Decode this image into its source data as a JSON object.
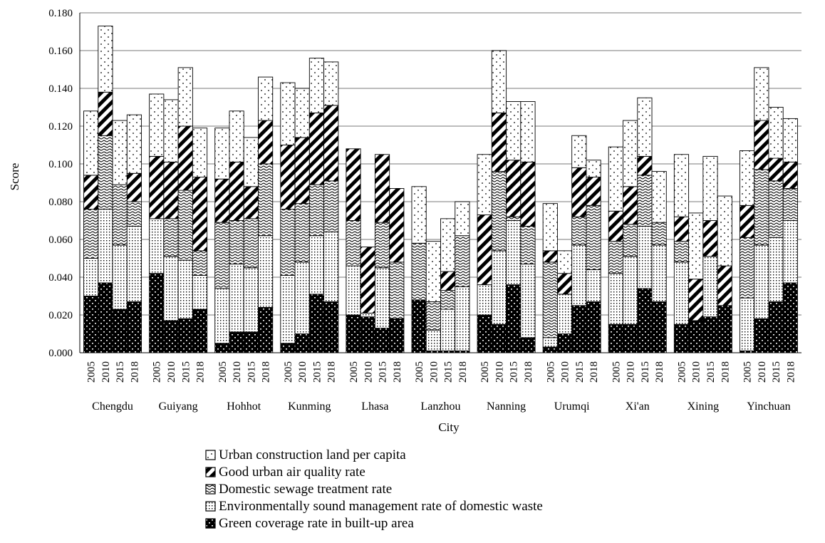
{
  "chart_data": {
    "type": "bar",
    "stacked": true,
    "xlabel": "City",
    "ylabel": "Score",
    "ylim": [
      0,
      0.18
    ],
    "yticks": [
      "0.000",
      "0.020",
      "0.040",
      "0.060",
      "0.080",
      "0.100",
      "0.120",
      "0.140",
      "0.160",
      "0.180"
    ],
    "grid": "horizontal",
    "legend_position": "bottom",
    "years": [
      "2005",
      "2010",
      "2015",
      "2018"
    ],
    "cities": [
      "Chengdu",
      "Guiyang",
      "Hohhot",
      "Kunming",
      "Lhasa",
      "Lanzhou",
      "Nanning",
      "Urumqi",
      "Xi'an",
      "Xining",
      "Yinchuan"
    ],
    "series": [
      {
        "name": "Green coverage rate in built-up area",
        "pattern": "green",
        "values": [
          [
            0.03,
            0.037,
            0.023,
            0.027
          ],
          [
            0.042,
            0.017,
            0.018,
            0.023
          ],
          [
            0.005,
            0.011,
            0.011,
            0.024
          ],
          [
            0.005,
            0.01,
            0.031,
            0.027
          ],
          [
            0.02,
            0.019,
            0.013,
            0.018
          ],
          [
            0.028,
            0.001,
            0.001,
            0.001
          ],
          [
            0.02,
            0.015,
            0.036,
            0.008
          ],
          [
            0.003,
            0.01,
            0.025,
            0.027
          ],
          [
            0.015,
            0.015,
            0.034,
            0.027
          ],
          [
            0.015,
            0.017,
            0.019,
            0.025
          ],
          [
            0.001,
            0.018,
            0.027,
            0.037
          ]
        ]
      },
      {
        "name": "Environmentally sound management rate of domestic waste",
        "pattern": "waste",
        "values": [
          [
            0.02,
            0.039,
            0.034,
            0.04
          ],
          [
            0.029,
            0.034,
            0.031,
            0.018
          ],
          [
            0.029,
            0.036,
            0.034,
            0.038
          ],
          [
            0.036,
            0.038,
            0.031,
            0.037
          ],
          [
            0.026,
            0.002,
            0.032,
            0.0
          ],
          [
            0.0,
            0.011,
            0.022,
            0.034
          ],
          [
            0.016,
            0.039,
            0.034,
            0.039
          ],
          [
            0.005,
            0.021,
            0.032,
            0.017
          ],
          [
            0.027,
            0.036,
            0.033,
            0.03
          ],
          [
            0.033,
            0.0,
            0.032,
            0.0
          ],
          [
            0.028,
            0.039,
            0.034,
            0.033
          ]
        ]
      },
      {
        "name": "Domestic sewage treatment rate",
        "pattern": "sewage",
        "values": [
          [
            0.026,
            0.039,
            0.032,
            0.013
          ],
          [
            0.0,
            0.02,
            0.037,
            0.013
          ],
          [
            0.035,
            0.023,
            0.026,
            0.038
          ],
          [
            0.035,
            0.031,
            0.027,
            0.027
          ],
          [
            0.024,
            0.0,
            0.024,
            0.03
          ],
          [
            0.03,
            0.015,
            0.01,
            0.027
          ],
          [
            0.0,
            0.042,
            0.002,
            0.02
          ],
          [
            0.04,
            0.0,
            0.015,
            0.034
          ],
          [
            0.017,
            0.017,
            0.027,
            0.012
          ],
          [
            0.011,
            0.0,
            0.0,
            0.0
          ],
          [
            0.032,
            0.04,
            0.03,
            0.017
          ]
        ]
      },
      {
        "name": "Good urban air quality rate",
        "pattern": "air",
        "values": [
          [
            0.018,
            0.023,
            0.0,
            0.015
          ],
          [
            0.033,
            0.03,
            0.034,
            0.039
          ],
          [
            0.023,
            0.031,
            0.017,
            0.023
          ],
          [
            0.034,
            0.035,
            0.038,
            0.04
          ],
          [
            0.038,
            0.035,
            0.036,
            0.039
          ],
          [
            0.0,
            0.0,
            0.01,
            0.0
          ],
          [
            0.037,
            0.031,
            0.03,
            0.034
          ],
          [
            0.006,
            0.011,
            0.026,
            0.015
          ],
          [
            0.016,
            0.02,
            0.01,
            0.0
          ],
          [
            0.013,
            0.022,
            0.019,
            0.021
          ],
          [
            0.017,
            0.026,
            0.012,
            0.014
          ]
        ]
      },
      {
        "name": "Urban construction land per capita",
        "pattern": "land",
        "values": [
          [
            0.034,
            0.035,
            0.034,
            0.031
          ],
          [
            0.033,
            0.033,
            0.031,
            0.026
          ],
          [
            0.027,
            0.027,
            0.026,
            0.023
          ],
          [
            0.033,
            0.026,
            0.029,
            0.023
          ],
          [
            0.0,
            0.0,
            0.0,
            0.0
          ],
          [
            0.03,
            0.032,
            0.028,
            0.018
          ],
          [
            0.032,
            0.033,
            0.031,
            0.032
          ],
          [
            0.025,
            0.012,
            0.017,
            0.009
          ],
          [
            0.034,
            0.035,
            0.031,
            0.027
          ],
          [
            0.033,
            0.035,
            0.034,
            0.037
          ],
          [
            0.029,
            0.028,
            0.027,
            0.023
          ]
        ]
      }
    ]
  }
}
